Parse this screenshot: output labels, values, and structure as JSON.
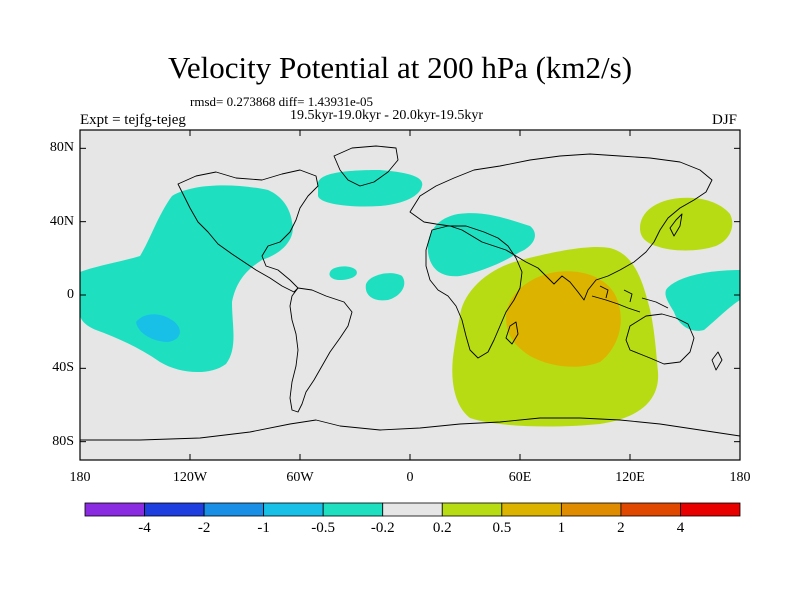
{
  "title": "Velocity Potential at 200 hPa (km2/s)",
  "stats_line": "rmsd= 0.273868 diff= 1.43931e-05",
  "period_line": "19.5kyr-19.0kyr - 20.0kyr-19.5kyr",
  "experiment_label": "Expt = tejfg-tejeg",
  "season_label": "DJF",
  "map": {
    "projection": "cylindrical-equidistant",
    "lon_range": [
      -180,
      180
    ],
    "lat_range": [
      -90,
      90
    ],
    "background_color": "#e6e6e6",
    "coastline_color": "#000000"
  },
  "y_ticks": [
    {
      "label": "80N",
      "lat": 80
    },
    {
      "label": "40N",
      "lat": 40
    },
    {
      "label": "0",
      "lat": 0
    },
    {
      "label": "40S",
      "lat": -40
    },
    {
      "label": "80S",
      "lat": -80
    }
  ],
  "x_ticks": [
    {
      "label": "180",
      "lon": -180
    },
    {
      "label": "120W",
      "lon": -120
    },
    {
      "label": "60W",
      "lon": -60
    },
    {
      "label": "0",
      "lon": 0
    },
    {
      "label": "60E",
      "lon": 60
    },
    {
      "label": "120E",
      "lon": 120
    },
    {
      "label": "180",
      "lon": 180
    }
  ],
  "colorbar": {
    "colors": [
      "#8a2be2",
      "#1e3ee0",
      "#1a8fe6",
      "#18c0e8",
      "#1ee0c0",
      "#e6e6e6",
      "#b8dc14",
      "#dcb400",
      "#e08c00",
      "#e04800",
      "#e80000"
    ],
    "labels": [
      "-4",
      "-2",
      "-1",
      "-0.5",
      "-0.2",
      "0.2",
      "0.5",
      "1",
      "2",
      "4"
    ]
  },
  "chart_data": {
    "type": "heatmap",
    "title": "Velocity Potential at 200 hPa (km2/s)",
    "units": "km2/s",
    "levels": [
      -4,
      -2,
      -1,
      -0.5,
      -0.2,
      0.2,
      0.5,
      1,
      2,
      4
    ],
    "xlim": [
      -180,
      180
    ],
    "ylim": [
      -90,
      90
    ],
    "rmsd": 0.273868,
    "diff": 1.43931e-05,
    "regions": [
      {
        "name": "eastern-pacific-americas-negative",
        "level": "-0.5 to -0.2",
        "color": "#1ee0c0"
      },
      {
        "name": "southeast-pacific-minimum",
        "level": "-1 to -0.5",
        "color": "#18c0e8"
      },
      {
        "name": "north-atlantic-negative",
        "level": "-0.5 to -0.2",
        "color": "#1ee0c0"
      },
      {
        "name": "tropical-atlantic-negative",
        "level": "-0.5 to -0.2",
        "color": "#1ee0c0"
      },
      {
        "name": "mediterranean-middle-east-negative",
        "level": "-0.5 to -0.2",
        "color": "#1ee0c0"
      },
      {
        "name": "western-pacific-negative",
        "level": "-0.5 to -0.2",
        "color": "#1ee0c0"
      },
      {
        "name": "indian-ocean-positive",
        "level": "0.2 to 0.5",
        "color": "#b8dc14"
      },
      {
        "name": "indian-ocean-maximum",
        "level": "0.5 to 1",
        "color": "#dcb400"
      },
      {
        "name": "east-asia-positive",
        "level": "0.2 to 0.5",
        "color": "#b8dc14"
      }
    ]
  }
}
